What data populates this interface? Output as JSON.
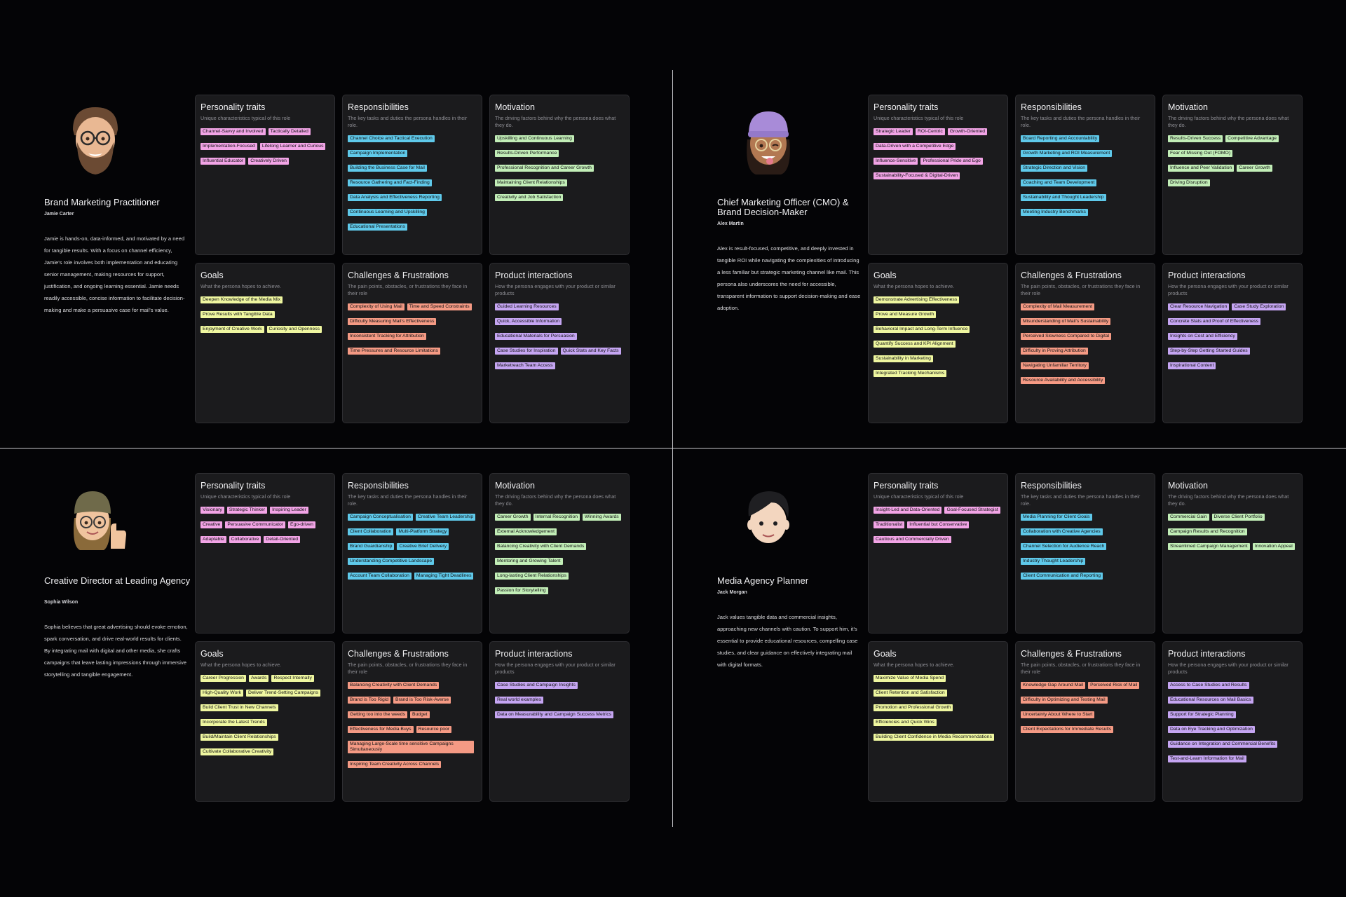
{
  "labels": {
    "personality": {
      "title": "Personality traits",
      "subtitle": "Unique characteristics typical of this role"
    },
    "responsibilities": {
      "title": "Responsibilities",
      "subtitle": "The key tasks and duties the persona handles in their role."
    },
    "motivation": {
      "title": "Motivation",
      "subtitle": "The driving factors behind why the persona does what they do."
    },
    "goals": {
      "title": "Goals",
      "subtitle": "What the persona hopes to achieve."
    },
    "challenges": {
      "title": "Challenges & Frustrations",
      "subtitle": "The pain points, obstacles, or frustrations they face in their role"
    },
    "product": {
      "title": "Product interactions",
      "subtitle": "How the persona engages with your product or similar products"
    }
  },
  "colors": {
    "personality": "#f2a4e6",
    "responsibilities": "#5fc9ea",
    "motivation": "#c2eeb7",
    "goals": "#eff7a0",
    "challenges": "#f59a84",
    "product": "#c5a5f2"
  },
  "personas": [
    {
      "avatar": "bearded-man-glasses-avatar",
      "title": "Brand Marketing Practitioner",
      "person": "Jamie Carter",
      "description": "Jamie is hands-on, data-informed, and motivated by a need for tangible results. With a focus on channel efficiency, Jamie's role involves both implementation and educating senior management, making resources for support, justification, and ongoing learning essential. Jamie needs readily accessible, concise information to facilitate decision-making and make a persuasive case for mail's value.",
      "personality": [
        "Channel-Savvy and Involved",
        "Tactically Detailed",
        "Implementation-Focused",
        "Lifelong Learner and Curious",
        "Influential Educator",
        "Creatively Driven"
      ],
      "responsibilities": [
        "Channel Choice and Tactical Execution",
        "Campaign Implementation",
        "Building the Business Case for Mail",
        "Resource Gathering and Fact-Finding",
        "Data Analysis and Effectiveness Reporting",
        "Continuous Learning and Upskilling",
        "Educational Presentations"
      ],
      "motivation": [
        "Upskilling and Continuous Learning",
        "Results-Driven Performance",
        "Professional Recognition and Career Growth",
        "Maintaining Client Relationships",
        "Creativity and Job Satisfaction"
      ],
      "goals": [
        "Deepen Knowledge of the Media Mix",
        "Prove Results with Tangible Data",
        "Enjoyment of Creative Work",
        "Curiosity and Openness"
      ],
      "challenges": [
        "Complexity of Using Mail",
        "Time and Speed Constraints",
        "Difficulty Measuring Mail's Effectiveness",
        "Inconsistent Tracking for Attribution",
        "Time Pressures and Resource Limitations"
      ],
      "product": [
        "Guided Learning Resources",
        "Quick, Accessible Information",
        "Educational Materials for Persuasion",
        "Case Studies for Inspiration",
        "Quick Stats and Key Facts",
        "Marketreach Team Access"
      ]
    },
    {
      "avatar": "woman-purple-beanie-avatar",
      "title": "Chief Marketing Officer (CMO) & Brand Decision-Maker",
      "person": "Alex Martin",
      "description": "Alex is result-focused, competitive, and deeply invested in tangible ROI while navigating the complexities of introducing a less familiar but strategic marketing channel like mail. This persona also underscores the need for accessible, transparent information to support decision-making and ease adoption.",
      "personality": [
        "Strategic Leader",
        "ROI-Centric",
        "Growth-Oriented",
        "Data-Driven with a Competitive Edge",
        "Influence-Sensitive",
        "Professional Pride and Ego",
        "Sustainability-Focused & Digital-Driven"
      ],
      "responsibilities": [
        "Board Reporting and Accountability",
        "Growth Marketing and ROI Measurement",
        "Strategic Direction and Vision",
        "Coaching and Team Development",
        "Sustainability and Thought Leadership",
        "Meeting Industry Benchmarks"
      ],
      "motivation": [
        "Results-Driven Success",
        "Competitive Advantage",
        "Fear of Missing Out (FOMO)",
        "Influence and Peer Validation",
        "Career Growth",
        "Driving Disruption"
      ],
      "goals": [
        "Demonstrate Advertising Effectiveness",
        "Prove and Measure Growth",
        "Behavioral Impact and Long-Term Influence",
        "Quantify Success and KPI Alignment",
        "Sustainability in Marketing",
        "Integrated Tracking Mechanisms"
      ],
      "challenges": [
        "Complexity of Mail Measurement",
        "Misunderstanding of Mail's Sustainability",
        "Perceived Slowness Compared to Digital",
        "Difficulty in Proving Attribution",
        "Navigating Unfamiliar Territory",
        "Resource Availability and Accessibility"
      ],
      "product": [
        "Clear Resource Navigation",
        "Case Study Exploration",
        "Concrete Stats and Proof of Effectiveness",
        "Insights on Cost and Efficiency",
        "Step-by-Step Getting Started Guides",
        "Inspirational Content"
      ]
    },
    {
      "avatar": "woman-olive-beanie-thumbs-up-avatar",
      "title": "Creative Director at Leading Agency",
      "person": "Sophia Wilson",
      "description": "Sophia believes that great advertising should evoke emotion, spark conversation, and drive real-world results for clients. By integrating mail with digital and other media, she crafts campaigns that leave lasting impressions through immersive storytelling and tangible engagement.",
      "personality": [
        "Visionary",
        "Strategic Thinker",
        "Inspiring Leader",
        "Creative",
        "Persuasive Communicator",
        "Ego-driven",
        "Adaptable",
        "Collaborative",
        "Detail-Oriented"
      ],
      "responsibilities": [
        "Campaign Conceptualisation",
        "Creative Team Leadership",
        "Client Collaboration",
        "Multi-Platform Strategy",
        "Brand Guardianship",
        "Creative Brief Delivery",
        "Understanding Competitive Landscape",
        "Account Team Collaboration",
        "Managing Tight Deadlines"
      ],
      "motivation": [
        "Career Growth",
        "Internal Recognition",
        "Winning Awards",
        "External Acknowledgement",
        "Balancing Creativity with Client Demands",
        "Mentoring and Growing Talent",
        "Long-lasting Client Relationships",
        "Passion for Storytelling"
      ],
      "goals": [
        "Career Progression",
        "Awards",
        "Respect Internally",
        "High-Quality Work",
        "Deliver Trend-Setting Campaigns",
        "Build Client Trust in New Channels",
        "Incorporate the Latest Trends",
        "Build/Maintain Client Relationships",
        "Cultivate Collaborative Creativity"
      ],
      "challenges": [
        "Balancing Creativity with Client Demands",
        "Brand is Too Rigid",
        "Brand is Too Risk-Averse",
        "Getting too into the weeds",
        "Budget",
        "Effectiveness for Media Buys",
        "Resource poor",
        "Managing Large-Scale time sensitive Campaigns Simultaneously",
        "Inspiring Team Creativity Across Channels"
      ],
      "product": [
        "Case Studies and Campaign Insights",
        "Real world examples",
        "Data on Measurability and Campaign Success Metrics"
      ]
    },
    {
      "avatar": "young-man-dark-hair-avatar",
      "title": "Media Agency Planner",
      "person": "Jack Morgan",
      "description": "Jack values tangible data and commercial insights, approaching new channels with caution. To support him, it's essential to provide educational resources, compelling case studies, and clear guidance on effectively integrating mail with digital formats.",
      "personality": [
        "Insight-Led and Data-Oriented",
        "Goal-Focused Strategist",
        "Traditionalist",
        "Influential but Conservative",
        "Cautious and Commercially Driven"
      ],
      "responsibilities": [
        "Media Planning for Client Goals",
        "Collaboration with Creative Agencies",
        "Channel Selection for Audience Reach",
        "Industry Thought Leadership",
        "Client Communication and Reporting"
      ],
      "motivation": [
        "Commercial Gain",
        "Diverse Client Portfolio",
        "Campaign Results and Recognition",
        "Streamlined Campaign Management",
        "Innovation Appeal"
      ],
      "goals": [
        "Maximize Value of Media Spend",
        "Client Retention and Satisfaction",
        "Promotion and Professional Growth",
        "Efficiencies and Quick Wins",
        "Building Client Confidence in Media Recommendations"
      ],
      "challenges": [
        "Knowledge Gap Around Mail",
        "Perceived Risk of Mail",
        "Difficulty in Optimizing and Testing Mail",
        "Uncertainty About Where to Start",
        "Client Expectations for Immediate Results"
      ],
      "product": [
        "Access to Case Studies and Results",
        "Educational Resources on Mail Basics",
        "Support for Strategic Planning",
        "Data on Eye Tracking and Optimization",
        "Guidance on Integration and Commercial Benefits",
        "Test-and-Learn Information for Mail"
      ]
    }
  ]
}
